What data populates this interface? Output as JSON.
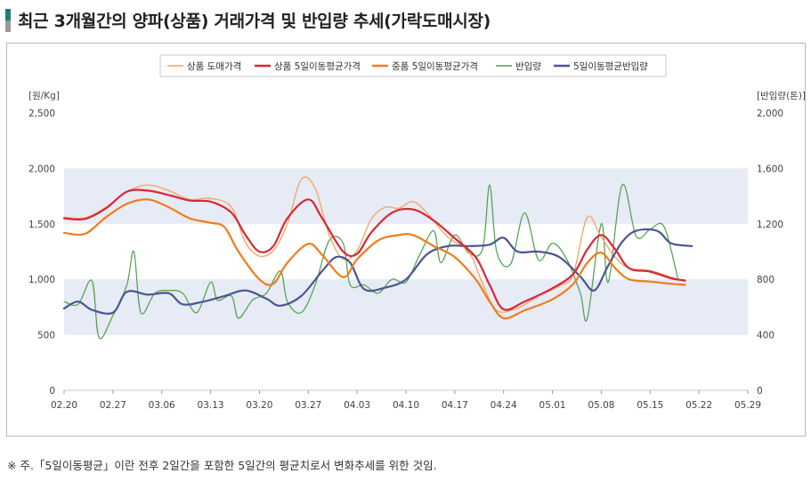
{
  "page": {
    "title": "최근 3개월간의 양파(상품) 거래가격 및 반입량 추세(가락도매시장)",
    "footnote": "※ 주.「5일이동평균」이란 전후 2일간을 포함한 5일간의 평균치로서 변화추세를 위한 것임."
  },
  "colors": {
    "title_accent": "#1f7d73",
    "band": "#e6ebf5",
    "price_daily": "#f3a35a",
    "price_ma": "#d9263a",
    "mid_ma": "#ef7d1a",
    "volume_daily": "#4f9f4a",
    "volume_ma": "#4a5593"
  },
  "chart_data": {
    "type": "line",
    "y_left_label": "[원/Kg]",
    "y_right_label": "[반입량(톤)]",
    "y_left_range": [
      0,
      2500
    ],
    "y_right_range": [
      0,
      2000
    ],
    "y_left_ticks": [
      "0",
      "500",
      "1,000",
      "1,500",
      "2,000",
      "2,500"
    ],
    "y_right_ticks": [
      "0",
      "400",
      "800",
      "1,200",
      "1,600",
      "2,000"
    ],
    "x_range": [
      "02.20",
      "05.29"
    ],
    "x_ticks": [
      "02.20",
      "02.27",
      "03.06",
      "03.13",
      "03.20",
      "03.27",
      "04.03",
      "04.10",
      "04.17",
      "04.24",
      "05.01",
      "05.08",
      "05.15",
      "05.22",
      "05.29"
    ],
    "legend_position": "top",
    "series": [
      {
        "name": "상품 도매가격",
        "axis": "left",
        "color_key": "price_daily",
        "points": [
          [
            "02.20",
            1560
          ],
          [
            "02.23",
            1555
          ],
          [
            "02.26",
            1650
          ],
          [
            "03.01",
            1790
          ],
          [
            "03.04",
            1850
          ],
          [
            "03.07",
            1800
          ],
          [
            "03.10",
            1720
          ],
          [
            "03.13",
            1730
          ],
          [
            "03.16",
            1650
          ],
          [
            "03.18",
            1330
          ],
          [
            "03.20",
            1210
          ],
          [
            "03.22",
            1260
          ],
          [
            "03.24",
            1500
          ],
          [
            "03.26",
            1900
          ],
          [
            "03.28",
            1820
          ],
          [
            "03.30",
            1400
          ],
          [
            "04.01",
            1180
          ],
          [
            "04.03",
            1260
          ],
          [
            "04.05",
            1540
          ],
          [
            "04.07",
            1650
          ],
          [
            "04.09",
            1640
          ],
          [
            "04.11",
            1700
          ],
          [
            "04.13",
            1600
          ],
          [
            "04.16",
            1380
          ],
          [
            "04.19",
            1250
          ],
          [
            "04.21",
            960
          ],
          [
            "04.23",
            720
          ],
          [
            "04.26",
            740
          ],
          [
            "04.29",
            850
          ],
          [
            "05.02",
            940
          ],
          [
            "05.04",
            1050
          ],
          [
            "05.06",
            1560
          ],
          [
            "05.08",
            1380
          ],
          [
            "05.10",
            1200
          ],
          [
            "05.12",
            1100
          ],
          [
            "05.15",
            1080
          ],
          [
            "05.18",
            1020
          ],
          [
            "05.20",
            980
          ]
        ]
      },
      {
        "name": "상품 5일이동평균가격",
        "axis": "left",
        "color_key": "price_ma",
        "points": [
          [
            "02.20",
            1550
          ],
          [
            "02.23",
            1545
          ],
          [
            "02.26",
            1640
          ],
          [
            "03.01",
            1790
          ],
          [
            "03.04",
            1800
          ],
          [
            "03.07",
            1760
          ],
          [
            "03.10",
            1710
          ],
          [
            "03.13",
            1700
          ],
          [
            "03.16",
            1600
          ],
          [
            "03.18",
            1400
          ],
          [
            "03.20",
            1250
          ],
          [
            "03.22",
            1300
          ],
          [
            "03.24",
            1550
          ],
          [
            "03.27",
            1720
          ],
          [
            "03.29",
            1550
          ],
          [
            "04.01",
            1250
          ],
          [
            "04.03",
            1230
          ],
          [
            "04.05",
            1420
          ],
          [
            "04.08",
            1600
          ],
          [
            "04.11",
            1630
          ],
          [
            "04.14",
            1530
          ],
          [
            "04.17",
            1370
          ],
          [
            "04.20",
            1200
          ],
          [
            "04.22",
            950
          ],
          [
            "04.24",
            730
          ],
          [
            "04.27",
            800
          ],
          [
            "05.01",
            920
          ],
          [
            "05.04",
            1050
          ],
          [
            "05.06",
            1270
          ],
          [
            "05.08",
            1400
          ],
          [
            "05.10",
            1270
          ],
          [
            "05.12",
            1100
          ],
          [
            "05.15",
            1070
          ],
          [
            "05.18",
            1010
          ],
          [
            "05.20",
            990
          ]
        ]
      },
      {
        "name": "중품 5일이동평균가격",
        "axis": "left",
        "color_key": "mid_ma",
        "points": [
          [
            "02.20",
            1420
          ],
          [
            "02.23",
            1410
          ],
          [
            "02.26",
            1560
          ],
          [
            "03.01",
            1680
          ],
          [
            "03.04",
            1720
          ],
          [
            "03.07",
            1650
          ],
          [
            "03.10",
            1550
          ],
          [
            "03.13",
            1510
          ],
          [
            "03.15",
            1470
          ],
          [
            "03.17",
            1250
          ],
          [
            "03.20",
            1000
          ],
          [
            "03.22",
            960
          ],
          [
            "03.24",
            1150
          ],
          [
            "03.27",
            1320
          ],
          [
            "03.29",
            1220
          ],
          [
            "04.01",
            1020
          ],
          [
            "04.03",
            1180
          ],
          [
            "04.06",
            1350
          ],
          [
            "04.09",
            1400
          ],
          [
            "04.11",
            1400
          ],
          [
            "04.14",
            1300
          ],
          [
            "04.17",
            1200
          ],
          [
            "04.20",
            1000
          ],
          [
            "04.22",
            800
          ],
          [
            "04.24",
            650
          ],
          [
            "04.27",
            720
          ],
          [
            "05.01",
            820
          ],
          [
            "05.04",
            960
          ],
          [
            "05.06",
            1150
          ],
          [
            "05.08",
            1240
          ],
          [
            "05.10",
            1100
          ],
          [
            "05.12",
            1000
          ],
          [
            "05.15",
            980
          ],
          [
            "05.18",
            960
          ],
          [
            "05.20",
            950
          ]
        ]
      },
      {
        "name": "반입량",
        "axis": "right",
        "color_key": "volume_daily",
        "points": [
          [
            "02.20",
            640
          ],
          [
            "02.22",
            620
          ],
          [
            "02.24",
            790
          ],
          [
            "02.25",
            380
          ],
          [
            "02.27",
            540
          ],
          [
            "03.01",
            760
          ],
          [
            "03.02",
            1000
          ],
          [
            "03.03",
            560
          ],
          [
            "03.05",
            700
          ],
          [
            "03.07",
            720
          ],
          [
            "03.09",
            700
          ],
          [
            "03.11",
            560
          ],
          [
            "03.13",
            780
          ],
          [
            "03.14",
            650
          ],
          [
            "03.16",
            680
          ],
          [
            "03.17",
            520
          ],
          [
            "03.19",
            650
          ],
          [
            "03.21",
            700
          ],
          [
            "03.23",
            860
          ],
          [
            "03.24",
            640
          ],
          [
            "03.26",
            560
          ],
          [
            "03.28",
            760
          ],
          [
            "03.30",
            1080
          ],
          [
            "04.01",
            1060
          ],
          [
            "04.02",
            760
          ],
          [
            "04.04",
            760
          ],
          [
            "04.06",
            700
          ],
          [
            "04.08",
            800
          ],
          [
            "04.10",
            780
          ],
          [
            "04.12",
            980
          ],
          [
            "04.14",
            1150
          ],
          [
            "04.15",
            920
          ],
          [
            "04.17",
            1120
          ],
          [
            "04.19",
            990
          ],
          [
            "04.21",
            1020
          ],
          [
            "04.22",
            1480
          ],
          [
            "04.23",
            1000
          ],
          [
            "04.25",
            910
          ],
          [
            "04.27",
            1280
          ],
          [
            "04.29",
            940
          ],
          [
            "05.01",
            1060
          ],
          [
            "05.03",
            950
          ],
          [
            "05.05",
            700
          ],
          [
            "05.06",
            520
          ],
          [
            "05.08",
            1200
          ],
          [
            "05.09",
            780
          ],
          [
            "05.11",
            1480
          ],
          [
            "05.13",
            1110
          ],
          [
            "05.15",
            1160
          ],
          [
            "05.17",
            1180
          ],
          [
            "05.19",
            800
          ]
        ]
      },
      {
        "name": "5일이동평균반입량",
        "axis": "right",
        "color_key": "volume_ma",
        "points": [
          [
            "02.20",
            590
          ],
          [
            "02.22",
            640
          ],
          [
            "02.24",
            580
          ],
          [
            "02.27",
            560
          ],
          [
            "03.01",
            710
          ],
          [
            "03.04",
            690
          ],
          [
            "03.07",
            700
          ],
          [
            "03.09",
            620
          ],
          [
            "03.12",
            640
          ],
          [
            "03.15",
            680
          ],
          [
            "03.18",
            720
          ],
          [
            "03.21",
            660
          ],
          [
            "03.23",
            610
          ],
          [
            "03.26",
            680
          ],
          [
            "03.29",
            860
          ],
          [
            "03.31",
            960
          ],
          [
            "04.02",
            920
          ],
          [
            "04.04",
            730
          ],
          [
            "04.07",
            740
          ],
          [
            "04.10",
            800
          ],
          [
            "04.13",
            980
          ],
          [
            "04.16",
            1040
          ],
          [
            "04.19",
            1040
          ],
          [
            "04.22",
            1050
          ],
          [
            "04.24",
            1100
          ],
          [
            "04.26",
            1000
          ],
          [
            "04.29",
            1000
          ],
          [
            "05.02",
            960
          ],
          [
            "05.05",
            820
          ],
          [
            "05.07",
            720
          ],
          [
            "05.09",
            900
          ],
          [
            "05.11",
            1070
          ],
          [
            "05.13",
            1150
          ],
          [
            "05.16",
            1150
          ],
          [
            "05.18",
            1060
          ],
          [
            "05.21",
            1040
          ]
        ]
      }
    ]
  }
}
